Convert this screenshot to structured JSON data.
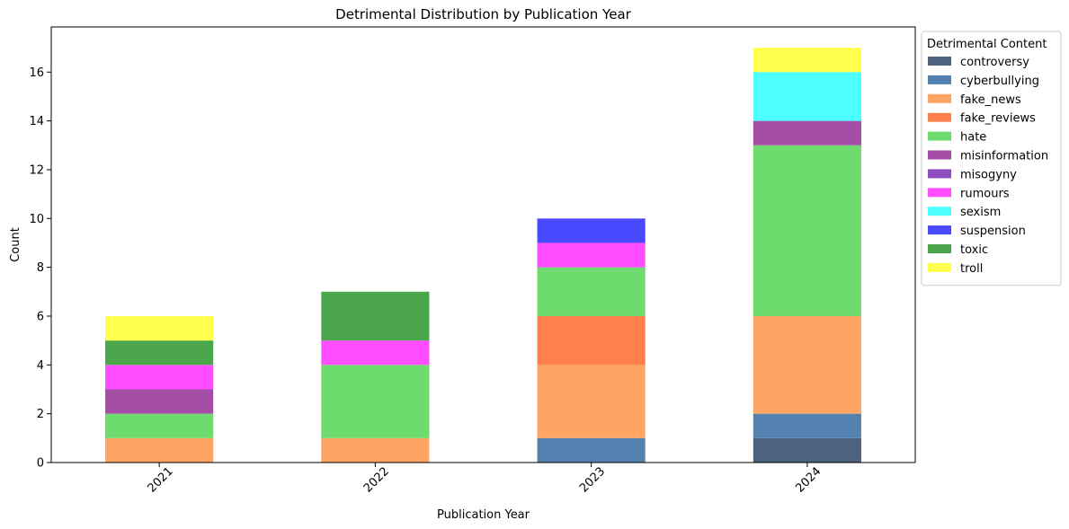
{
  "chart_data": {
    "type": "bar",
    "stacked": true,
    "title": "Detrimental Distribution by Publication Year",
    "xlabel": "Publication Year",
    "ylabel": "Count",
    "ylim": [
      0,
      17.85
    ],
    "yticks": [
      0,
      2,
      4,
      6,
      8,
      10,
      12,
      14,
      16
    ],
    "categories": [
      "2021",
      "2022",
      "2023",
      "2024"
    ],
    "legend": {
      "title": "Detrimental Content",
      "placement": "outside upper-right"
    },
    "series": [
      {
        "name": "controversy",
        "color": "#4c627f",
        "values": [
          0,
          0,
          0,
          1
        ]
      },
      {
        "name": "cyberbullying",
        "color": "#5382b0",
        "values": [
          0,
          0,
          1,
          1
        ]
      },
      {
        "name": "fake_news",
        "color": "#ffa463",
        "values": [
          1,
          1,
          3,
          4
        ]
      },
      {
        "name": "fake_reviews",
        "color": "#ff7f4d",
        "values": [
          0,
          0,
          2,
          0
        ]
      },
      {
        "name": "hate",
        "color": "#6ddb6d",
        "values": [
          1,
          3,
          2,
          7
        ]
      },
      {
        "name": "misinformation",
        "color": "#a54ea5",
        "values": [
          1,
          0,
          0,
          1
        ]
      },
      {
        "name": "misogyny",
        "color": "#8f4cbf",
        "values": [
          0,
          0,
          0,
          0
        ]
      },
      {
        "name": "rumours",
        "color": "#ff4dff",
        "values": [
          1,
          1,
          1,
          0
        ]
      },
      {
        "name": "sexism",
        "color": "#4dffff",
        "values": [
          0,
          0,
          0,
          2
        ]
      },
      {
        "name": "suspension",
        "color": "#4949ff",
        "values": [
          0,
          0,
          1,
          0
        ]
      },
      {
        "name": "toxic",
        "color": "#4ba64b",
        "values": [
          1,
          2,
          0,
          0
        ]
      },
      {
        "name": "troll",
        "color": "#ffff4d",
        "values": [
          1,
          0,
          0,
          1
        ]
      }
    ]
  }
}
